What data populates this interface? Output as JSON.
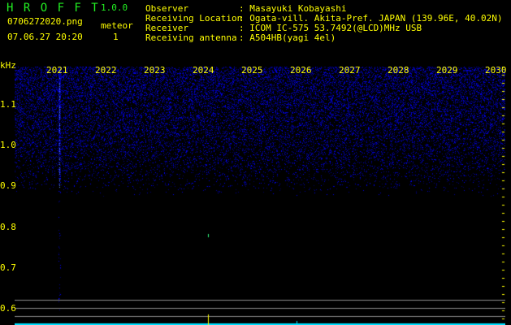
{
  "app": {
    "name": "H R O F F T",
    "version": "1.0.0"
  },
  "file": {
    "name": "0706272020.png",
    "datetime": "07.06.27 20:20"
  },
  "meteor": {
    "label": "meteor",
    "count": "1"
  },
  "info": [
    {
      "label": "Observer",
      "value": ": Masayuki Kobayashi"
    },
    {
      "label": "Receiving Location",
      "value": ": Ogata-vill. Akita-Pref. JAPAN (139.96E, 40.02N)"
    },
    {
      "label": "Receiver",
      "value": ": ICOM IC-575 53.7492(@LCD)MHz USB"
    },
    {
      "label": "Receiving antenna",
      "value": ": A504HB(yagi 4el)"
    }
  ],
  "spectrogram": {
    "y_unit": "kHz",
    "y_ticks": [
      "1.1",
      "1.0",
      "0.9",
      "0.8",
      "0.7",
      "0.6"
    ],
    "x_ticks": [
      "2021",
      "2022",
      "2023",
      "2024",
      "2025",
      "2026",
      "2027",
      "2028",
      "2029",
      "2030"
    ]
  },
  "colors": {
    "text": "#ffff00",
    "title": "#22ee22",
    "signal": "#1020ff",
    "baseline": "#00e0ff",
    "guide": "#808080"
  }
}
